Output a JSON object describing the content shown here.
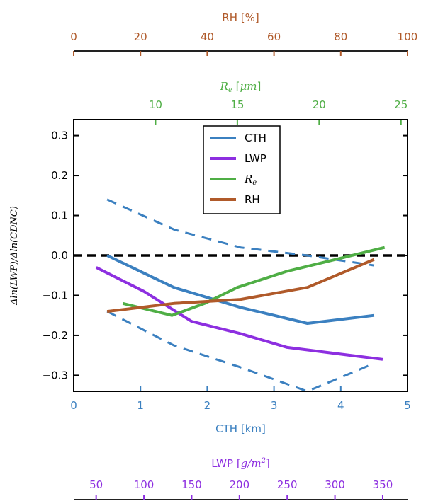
{
  "colors": {
    "cth": "#3b80c0",
    "lwp": "#8d2fe0",
    "re": "#4fae45",
    "rh": "#b05a2a",
    "axis": "#000000",
    "zero_line": "#000000"
  },
  "axes": {
    "rh": {
      "label": "RH [%]",
      "range": [
        0,
        100
      ],
      "ticks": [
        "0",
        "20",
        "40",
        "60",
        "80",
        "100"
      ]
    },
    "re": {
      "label": "R_e [μm]",
      "range": [
        5,
        25.4
      ],
      "ticks": [
        "10",
        "15",
        "20",
        "25"
      ]
    },
    "cth": {
      "label": "CTH [km]",
      "range": [
        0,
        5
      ],
      "ticks": [
        "0",
        "1",
        "2",
        "3",
        "4",
        "5"
      ]
    },
    "lwp": {
      "label": "LWP [g/m²]",
      "range": [
        26.5,
        376
      ],
      "ticks": [
        "50",
        "100",
        "150",
        "200",
        "250",
        "300",
        "350"
      ]
    },
    "y": {
      "label": "Δln(LWP)/Δln(CDNC)",
      "range": [
        -0.34,
        0.34
      ],
      "ticks": [
        "0.3",
        "0.2",
        "0.1",
        "0.0",
        "−0.1",
        "−0.2",
        "−0.3"
      ]
    }
  },
  "legend": {
    "items": [
      {
        "label": "CTH",
        "color_key": "cth"
      },
      {
        "label": "LWP",
        "color_key": "lwp"
      },
      {
        "label": "R_e",
        "color_key": "re"
      },
      {
        "label": "RH",
        "color_key": "rh"
      }
    ]
  },
  "chart_data": {
    "type": "line",
    "title": "",
    "ylabel": "Δln(LWP)/Δln(CDNC)",
    "ylim": [
      -0.34,
      0.34
    ],
    "grid": false,
    "legend_position": "top-center",
    "zero_line": {
      "y": 0.0,
      "style": "dashed"
    },
    "series": [
      {
        "name": "CTH",
        "axis": "cth",
        "x": [
          0.5,
          1.5,
          2.5,
          3.5,
          4.5
        ],
        "y": [
          0.0,
          -0.08,
          -0.13,
          -0.17,
          -0.15
        ]
      },
      {
        "name": "CTH upper",
        "axis": "cth",
        "style": "dashed",
        "x": [
          0.5,
          1.5,
          2.5,
          3.5,
          4.5
        ],
        "y": [
          0.14,
          0.065,
          0.02,
          0.0,
          -0.025
        ]
      },
      {
        "name": "CTH lower",
        "axis": "cth",
        "style": "dashed",
        "x": [
          0.5,
          1.5,
          2.5,
          3.5,
          4.5
        ],
        "y": [
          -0.14,
          -0.225,
          -0.28,
          -0.34,
          -0.27
        ]
      },
      {
        "name": "LWP",
        "axis": "lwp",
        "x": [
          50,
          100,
          150,
          200,
          250,
          300,
          350
        ],
        "y": [
          -0.03,
          -0.09,
          -0.165,
          -0.195,
          -0.23,
          -0.245,
          -0.26
        ]
      },
      {
        "name": "R_e",
        "axis": "re",
        "x": [
          8,
          11,
          13,
          15,
          18,
          20,
          24
        ],
        "y": [
          -0.12,
          -0.15,
          -0.12,
          -0.08,
          -0.04,
          -0.02,
          0.02
        ]
      },
      {
        "name": "RH",
        "axis": "rh",
        "x": [
          10,
          30,
          50,
          70,
          90
        ],
        "y": [
          -0.14,
          -0.12,
          -0.11,
          -0.08,
          -0.01
        ]
      }
    ]
  }
}
